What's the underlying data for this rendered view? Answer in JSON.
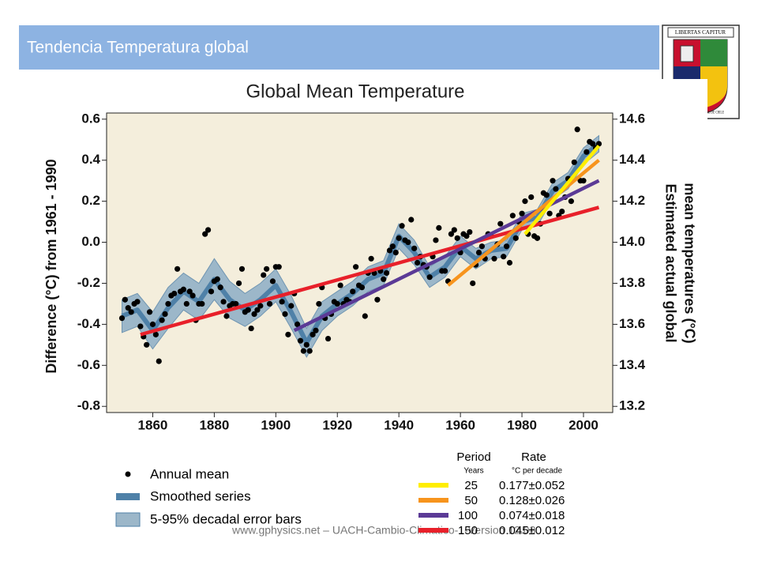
{
  "slide": {
    "title": "Tendencia Temperatura global",
    "footer": "www.gphysics.net – UACH-Cambio-Climatico-1-Version 12.08",
    "logo": {
      "motto": "LIBERTAS CAPITUR",
      "name": "UNIVERSIDAD AUSTRAL DE CHILE"
    }
  },
  "chart_data": {
    "type": "scatter",
    "title": "Global Mean Temperature",
    "y_label": "Difference (°C) from 1961 - 1990",
    "y2_label": [
      "Estimated actual global",
      "mean temperatures (°C)"
    ],
    "xlim": [
      1845,
      2009.5
    ],
    "xticks": [
      1860,
      1880,
      1900,
      1920,
      1940,
      1960,
      1980,
      2000
    ],
    "ylim": [
      -0.83,
      0.63
    ],
    "yticks": [
      0.6,
      0.4,
      0.2,
      {
        "value": 0,
        "label": "0.0"
      },
      -0.2,
      -0.4,
      -0.6,
      -0.8
    ],
    "y2lim": [
      13.17,
      14.63
    ],
    "y2ticks": [
      14.6,
      14.4,
      14.2,
      {
        "value": 14,
        "label": "14.0"
      },
      13.8,
      13.6,
      13.4,
      13.2
    ],
    "annual": {
      "name": "Annual mean",
      "color": "#000000",
      "x": [
        1850,
        1851,
        1852,
        1853,
        1854,
        1855,
        1856,
        1857,
        1858,
        1859,
        1860,
        1861,
        1862,
        1863,
        1864,
        1865,
        1866,
        1867,
        1868,
        1869,
        1870,
        1871,
        1872,
        1873,
        1874,
        1875,
        1876,
        1877,
        1878,
        1879,
        1880,
        1881,
        1882,
        1883,
        1884,
        1885,
        1886,
        1887,
        1888,
        1889,
        1890,
        1891,
        1892,
        1893,
        1894,
        1895,
        1896,
        1897,
        1898,
        1899,
        1900,
        1901,
        1902,
        1903,
        1904,
        1905,
        1906,
        1907,
        1908,
        1909,
        1910,
        1911,
        1912,
        1913,
        1914,
        1915,
        1916,
        1917,
        1918,
        1919,
        1920,
        1921,
        1922,
        1923,
        1924,
        1925,
        1926,
        1927,
        1928,
        1929,
        1930,
        1931,
        1932,
        1933,
        1934,
        1935,
        1936,
        1937,
        1938,
        1939,
        1940,
        1941,
        1942,
        1943,
        1944,
        1945,
        1946,
        1947,
        1948,
        1949,
        1950,
        1951,
        1952,
        1953,
        1954,
        1955,
        1956,
        1957,
        1958,
        1959,
        1960,
        1961,
        1962,
        1963,
        1964,
        1965,
        1966,
        1967,
        1968,
        1969,
        1970,
        1971,
        1972,
        1973,
        1974,
        1975,
        1976,
        1977,
        1978,
        1979,
        1980,
        1981,
        1982,
        1983,
        1984,
        1985,
        1986,
        1987,
        1988,
        1989,
        1990,
        1991,
        1992,
        1993,
        1994,
        1995,
        1996,
        1997,
        1998,
        1999,
        2000,
        2001,
        2002,
        2003,
        2004,
        2005
      ],
      "values": [
        -0.37,
        -0.28,
        -0.32,
        -0.34,
        -0.3,
        -0.29,
        -0.41,
        -0.46,
        -0.5,
        -0.34,
        -0.4,
        -0.45,
        -0.58,
        -0.38,
        -0.35,
        -0.3,
        -0.26,
        -0.25,
        -0.13,
        -0.24,
        -0.23,
        -0.3,
        -0.24,
        -0.26,
        -0.38,
        -0.3,
        -0.3,
        0.04,
        0.06,
        -0.24,
        -0.19,
        -0.18,
        -0.22,
        -0.29,
        -0.36,
        -0.31,
        -0.3,
        -0.3,
        -0.2,
        -0.13,
        -0.34,
        -0.33,
        -0.42,
        -0.35,
        -0.33,
        -0.31,
        -0.16,
        -0.13,
        -0.3,
        -0.19,
        -0.12,
        -0.12,
        -0.29,
        -0.35,
        -0.45,
        -0.31,
        -0.25,
        -0.4,
        -0.48,
        -0.53,
        -0.5,
        -0.53,
        -0.45,
        -0.43,
        -0.3,
        -0.22,
        -0.37,
        -0.47,
        -0.35,
        -0.29,
        -0.3,
        -0.21,
        -0.3,
        -0.28,
        -0.29,
        -0.24,
        -0.12,
        -0.21,
        -0.22,
        -0.36,
        -0.15,
        -0.08,
        -0.15,
        -0.28,
        -0.14,
        -0.18,
        -0.15,
        -0.04,
        -0.02,
        -0.05,
        0.02,
        0.08,
        0.01,
        0.0,
        0.11,
        -0.03,
        -0.1,
        -0.07,
        -0.11,
        -0.12,
        -0.17,
        -0.07,
        0.01,
        0.07,
        -0.14,
        -0.14,
        -0.19,
        0.04,
        0.06,
        0.02,
        -0.05,
        0.04,
        0.03,
        0.05,
        -0.2,
        -0.11,
        -0.05,
        -0.02,
        -0.08,
        0.04,
        0.03,
        -0.08,
        -0.01,
        0.09,
        -0.07,
        -0.02,
        -0.1,
        0.13,
        0.02,
        0.1,
        0.14,
        0.2,
        0.04,
        0.22,
        0.03,
        0.02,
        0.09,
        0.24,
        0.23,
        0.14,
        0.3,
        0.26,
        0.13,
        0.15,
        0.22,
        0.31,
        0.2,
        0.39,
        0.55,
        0.3,
        0.3,
        0.44,
        0.49,
        0.48,
        0.46,
        0.48
      ]
    },
    "smoothed": {
      "name": "Smoothed series",
      "band_name": "5-95% decadal error bars",
      "color": "#4f81a8",
      "band_color": "#9cb7c9",
      "x": [
        1850,
        1855,
        1860,
        1865,
        1870,
        1875,
        1880,
        1885,
        1890,
        1895,
        1900,
        1905,
        1910,
        1915,
        1920,
        1925,
        1930,
        1935,
        1940,
        1945,
        1950,
        1955,
        1960,
        1965,
        1970,
        1975,
        1980,
        1985,
        1990,
        1995,
        2000,
        2005
      ],
      "values": [
        -0.36,
        -0.33,
        -0.43,
        -0.32,
        -0.24,
        -0.29,
        -0.18,
        -0.28,
        -0.33,
        -0.28,
        -0.21,
        -0.34,
        -0.49,
        -0.36,
        -0.3,
        -0.25,
        -0.18,
        -0.15,
        0.03,
        -0.05,
        -0.17,
        -0.12,
        -0.02,
        -0.08,
        -0.04,
        -0.03,
        0.1,
        0.12,
        0.25,
        0.3,
        0.42,
        0.48
      ],
      "errors": [
        0.08,
        0.08,
        0.09,
        0.1,
        0.09,
        0.09,
        0.1,
        0.09,
        0.08,
        0.08,
        0.08,
        0.08,
        0.07,
        0.07,
        0.06,
        0.06,
        0.06,
        0.06,
        0.06,
        0.06,
        0.05,
        0.05,
        0.05,
        0.05,
        0.04,
        0.04,
        0.04,
        0.04,
        0.04,
        0.04,
        0.04,
        0.04
      ]
    },
    "trends": {
      "headers": [
        "Period",
        "Rate"
      ],
      "subheaders": [
        "Years",
        "°C per decade"
      ],
      "series": [
        {
          "period": 25,
          "rate": "0.177±0.052",
          "color": "#ffee00",
          "x": [
            1981,
            2005
          ],
          "values": [
            0.04,
            0.47
          ]
        },
        {
          "period": 50,
          "rate": "0.128±0.026",
          "color": "#f7941d",
          "x": [
            1956,
            2005
          ],
          "values": [
            -0.21,
            0.4
          ]
        },
        {
          "period": 100,
          "rate": "0.074±0.018",
          "color": "#5b3a96",
          "x": [
            1906,
            2005
          ],
          "values": [
            -0.43,
            0.3
          ]
        },
        {
          "period": 150,
          "rate": "0.045±0.012",
          "color": "#e8202a",
          "x": [
            1856,
            2005
          ],
          "values": [
            -0.45,
            0.17
          ]
        }
      ]
    }
  }
}
